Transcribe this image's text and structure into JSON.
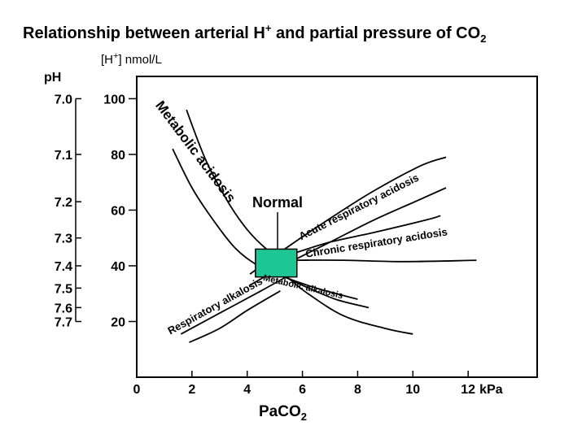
{
  "chart_data": {
    "type": "line",
    "title": "Relationship between arterial H",
    "title_sup": "+",
    "title_tail": " and partial pressure of CO",
    "title_sub": "2",
    "ylabel_pre": "[H",
    "ylabel_sup": "+",
    "ylabel_post": "] nmol/L",
    "ph_label": "pH",
    "xlabel_main": "PaCO",
    "xlabel_sub": "2",
    "xunit": "kPa",
    "xlim": [
      0,
      14.5
    ],
    "ylim": [
      0,
      108
    ],
    "x_ticks": [
      0,
      2,
      4,
      6,
      8,
      10,
      12
    ],
    "y_ticks": [
      20,
      40,
      60,
      80,
      100
    ],
    "ph_ticks": [
      {
        "label": "7.0",
        "h": 100
      },
      {
        "label": "7.1",
        "h": 80
      },
      {
        "label": "7.2",
        "h": 63
      },
      {
        "label": "7.3",
        "h": 50
      },
      {
        "label": "7.4",
        "h": 40
      },
      {
        "label": "7.5",
        "h": 32
      },
      {
        "label": "7.6",
        "h": 25
      },
      {
        "label": "7.7",
        "h": 20
      }
    ],
    "series": [
      {
        "name": "Metabolic acidosis",
        "boundary": "upper",
        "points": [
          [
            1.8,
            96
          ],
          [
            2.5,
            78
          ],
          [
            3.3,
            63
          ],
          [
            4.0,
            53
          ],
          [
            4.7,
            46
          ],
          [
            5.3,
            42
          ]
        ]
      },
      {
        "name": "Metabolic acidosis",
        "boundary": "lower",
        "points": [
          [
            1.3,
            82
          ],
          [
            2.0,
            68
          ],
          [
            2.8,
            56
          ],
          [
            3.6,
            46
          ],
          [
            4.4,
            40
          ],
          [
            5.2,
            36.5
          ],
          [
            6.5,
            32
          ],
          [
            8.0,
            28
          ]
        ]
      },
      {
        "name": "Acute respiratory acidosis",
        "boundary": "upper",
        "points": [
          [
            4.1,
            37
          ],
          [
            5.5,
            47
          ],
          [
            7.0,
            57
          ],
          [
            8.6,
            67
          ],
          [
            10.3,
            76
          ],
          [
            11.2,
            79
          ]
        ]
      },
      {
        "name": "Acute respiratory acidosis",
        "boundary": "lower",
        "points": [
          [
            4.1,
            33
          ],
          [
            5.5,
            41
          ],
          [
            7.0,
            48.5
          ],
          [
            8.6,
            56.5
          ],
          [
            10.3,
            64
          ],
          [
            11.2,
            68
          ]
        ]
      },
      {
        "name": "Chronic respiratory acidosis",
        "boundary": "upper",
        "points": [
          [
            5.7,
            44.5
          ],
          [
            7.0,
            48.5
          ],
          [
            8.6,
            52
          ],
          [
            10.5,
            56.5
          ],
          [
            11.0,
            58
          ]
        ]
      },
      {
        "name": "Chronic respiratory acidosis",
        "boundary": "lower",
        "points": [
          [
            5.8,
            42
          ],
          [
            7.5,
            42
          ],
          [
            9.5,
            41.5
          ],
          [
            11.5,
            41.8
          ],
          [
            12.3,
            42
          ]
        ]
      },
      {
        "name": "Respiratory alkalosis",
        "boundary": "upper",
        "points": [
          [
            1.6,
            15.5
          ],
          [
            3.0,
            23
          ],
          [
            4.5,
            31
          ],
          [
            5.5,
            36.5
          ]
        ]
      },
      {
        "name": "Respiratory alkalosis",
        "boundary": "lower",
        "points": [
          [
            1.9,
            12.5
          ],
          [
            3.0,
            17.5
          ],
          [
            4.0,
            24
          ],
          [
            5.2,
            31
          ]
        ]
      },
      {
        "name": "Metabolic alkalosis",
        "boundary": "upper",
        "points": [
          [
            5.3,
            36.5
          ],
          [
            6.0,
            33
          ],
          [
            7.2,
            28
          ],
          [
            8.4,
            25
          ]
        ]
      },
      {
        "name": "Metabolic alkalosis",
        "boundary": "lower",
        "points": [
          [
            5.5,
            35.5
          ],
          [
            6.2,
            30
          ],
          [
            7.5,
            22
          ],
          [
            9.0,
            17.5
          ],
          [
            10.0,
            15.5
          ]
        ]
      }
    ],
    "normal_box": {
      "x": [
        4.3,
        5.8
      ],
      "y": [
        36,
        46
      ],
      "color": "#1dc694",
      "label": "Normal",
      "label_x": 5.1,
      "label_y": 61
    },
    "region_labels": [
      {
        "text": "Metabolic acidosis",
        "x": 2.0,
        "y": 80,
        "angle": 53,
        "size": 17
      },
      {
        "text": "Acute respiratory acidosis",
        "x": 8.1,
        "y": 60,
        "angle": -27,
        "size": 13
      },
      {
        "text": "Chronic respiratory acidosis",
        "x": 8.7,
        "y": 47,
        "angle": -9,
        "size": 13
      },
      {
        "text": "Respiratory alkalosis",
        "x": 2.9,
        "y": 24.5,
        "angle": -29,
        "size": 13
      },
      {
        "text": "Metabolic alkalosis",
        "x": 6.0,
        "y": 31.5,
        "angle": 13,
        "size": 11
      }
    ],
    "grid": false
  }
}
